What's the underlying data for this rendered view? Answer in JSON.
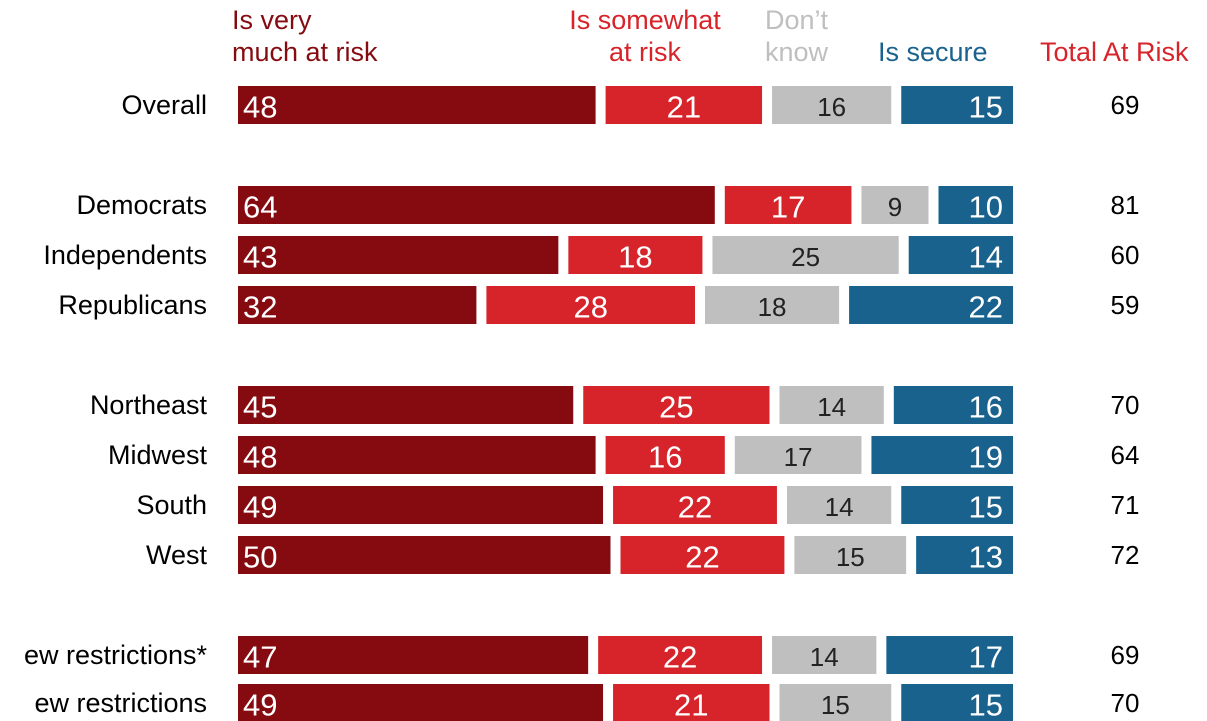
{
  "chart_data": {
    "type": "stacked-bar-horizontal",
    "categories": [
      "Overall",
      "Democrats",
      "Independents",
      "Republicans",
      "Northeast",
      "Midwest",
      "South",
      "West",
      "ew restrictions*",
      "ew restrictions"
    ],
    "series": [
      {
        "name": "Is very\nmuch at risk",
        "color": "#850b10",
        "values": [
          48,
          64,
          43,
          32,
          45,
          48,
          49,
          50,
          47,
          49
        ]
      },
      {
        "name": "Is somewhat\nat risk",
        "color": "#d7242b",
        "values": [
          21,
          17,
          18,
          28,
          25,
          16,
          22,
          22,
          22,
          21
        ]
      },
      {
        "name": "Don’t\nknow",
        "color": "#bfbfbf",
        "values": [
          16,
          9,
          25,
          18,
          14,
          17,
          14,
          15,
          14,
          15
        ]
      },
      {
        "name": "Is secure",
        "color": "#1a628e",
        "values": [
          15,
          10,
          14,
          22,
          16,
          19,
          15,
          13,
          17,
          15
        ]
      }
    ],
    "totals": {
      "name": "Total At Risk",
      "color": "#d7242b",
      "values": [
        69,
        81,
        60,
        59,
        70,
        64,
        71,
        72,
        69,
        70
      ]
    }
  }
}
